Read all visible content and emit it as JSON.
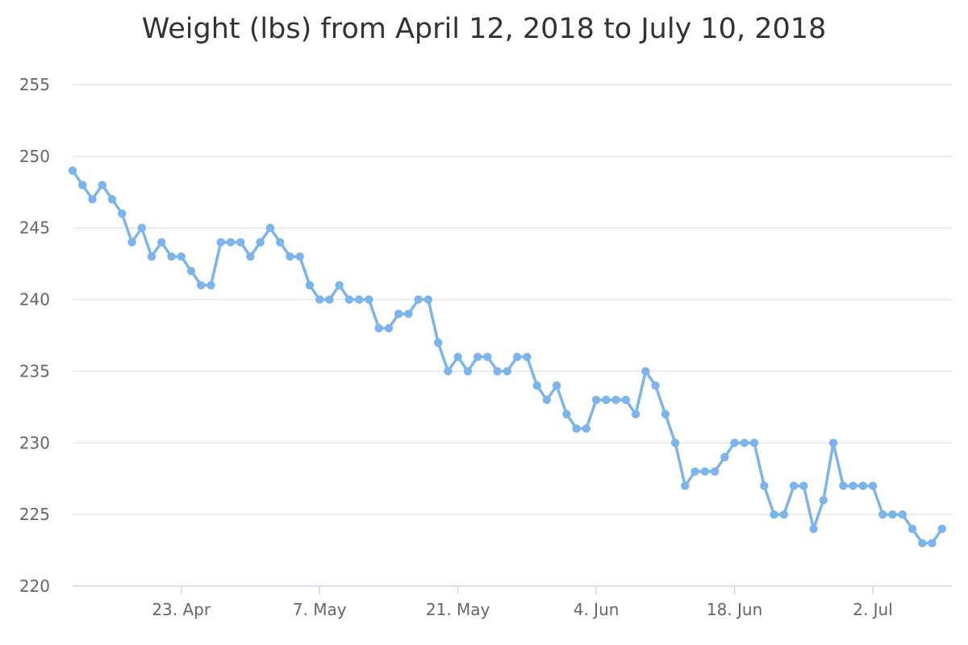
{
  "chart_data": {
    "type": "line",
    "title": "Weight (lbs) from April 12, 2018 to July 10, 2018",
    "xlabel": "",
    "ylabel": "",
    "ylim": [
      220,
      255
    ],
    "yticks": [
      220,
      225,
      230,
      235,
      240,
      245,
      250,
      255
    ],
    "xlim": [
      "2018-04-12",
      "2018-07-10"
    ],
    "xticks": [
      {
        "date": "2018-04-23",
        "label": "23. Apr"
      },
      {
        "date": "2018-05-07",
        "label": "7. May"
      },
      {
        "date": "2018-05-21",
        "label": "21. May"
      },
      {
        "date": "2018-06-04",
        "label": "4. Jun"
      },
      {
        "date": "2018-06-18",
        "label": "18. Jun"
      },
      {
        "date": "2018-07-02",
        "label": "2. Jul"
      }
    ],
    "grid": true,
    "legend": "none",
    "color": "#7cb5ec",
    "series": [
      {
        "x": [
          "2018-04-12",
          "2018-04-13",
          "2018-04-14",
          "2018-04-15",
          "2018-04-16",
          "2018-04-17",
          "2018-04-18",
          "2018-04-19",
          "2018-04-20",
          "2018-04-21",
          "2018-04-22",
          "2018-04-23",
          "2018-04-24",
          "2018-04-25",
          "2018-04-26",
          "2018-04-27",
          "2018-04-28",
          "2018-04-29",
          "2018-04-30",
          "2018-05-01",
          "2018-05-02",
          "2018-05-03",
          "2018-05-04",
          "2018-05-05",
          "2018-05-06",
          "2018-05-07",
          "2018-05-08",
          "2018-05-09",
          "2018-05-10",
          "2018-05-11",
          "2018-05-12",
          "2018-05-13",
          "2018-05-14",
          "2018-05-15",
          "2018-05-16",
          "2018-05-17",
          "2018-05-18",
          "2018-05-19",
          "2018-05-20",
          "2018-05-21",
          "2018-05-22",
          "2018-05-23",
          "2018-05-24",
          "2018-05-25",
          "2018-05-26",
          "2018-05-27",
          "2018-05-28",
          "2018-05-29",
          "2018-05-30",
          "2018-05-31",
          "2018-06-01",
          "2018-06-02",
          "2018-06-03",
          "2018-06-04",
          "2018-06-05",
          "2018-06-06",
          "2018-06-07",
          "2018-06-08",
          "2018-06-09",
          "2018-06-10",
          "2018-06-11",
          "2018-06-12",
          "2018-06-13",
          "2018-06-14",
          "2018-06-15",
          "2018-06-16",
          "2018-06-17",
          "2018-06-18",
          "2018-06-19",
          "2018-06-20",
          "2018-06-21",
          "2018-06-22",
          "2018-06-23",
          "2018-06-24",
          "2018-06-25",
          "2018-06-26",
          "2018-06-27",
          "2018-06-28",
          "2018-06-29",
          "2018-06-30",
          "2018-07-01",
          "2018-07-02",
          "2018-07-03",
          "2018-07-04",
          "2018-07-05",
          "2018-07-06",
          "2018-07-07",
          "2018-07-08",
          "2018-07-09",
          "2018-07-10"
        ],
        "y": [
          249,
          248,
          247,
          248,
          247,
          246,
          244,
          245,
          243,
          244,
          243,
          243,
          242,
          241,
          241,
          244,
          244,
          244,
          243,
          244,
          245,
          244,
          243,
          243,
          241,
          240,
          240,
          241,
          240,
          240,
          240,
          238,
          238,
          239,
          239,
          240,
          240,
          237,
          235,
          236,
          235,
          236,
          236,
          235,
          235,
          236,
          236,
          234,
          233,
          234,
          232,
          231,
          231,
          233,
          233,
          233,
          233,
          232,
          235,
          234,
          232,
          230,
          227,
          228,
          228,
          228,
          229,
          230,
          230,
          230,
          227,
          225,
          225,
          227,
          227,
          224,
          226,
          230,
          227,
          227,
          227,
          227,
          225,
          225,
          225,
          224,
          223,
          223,
          224,
          null
        ]
      }
    ]
  }
}
